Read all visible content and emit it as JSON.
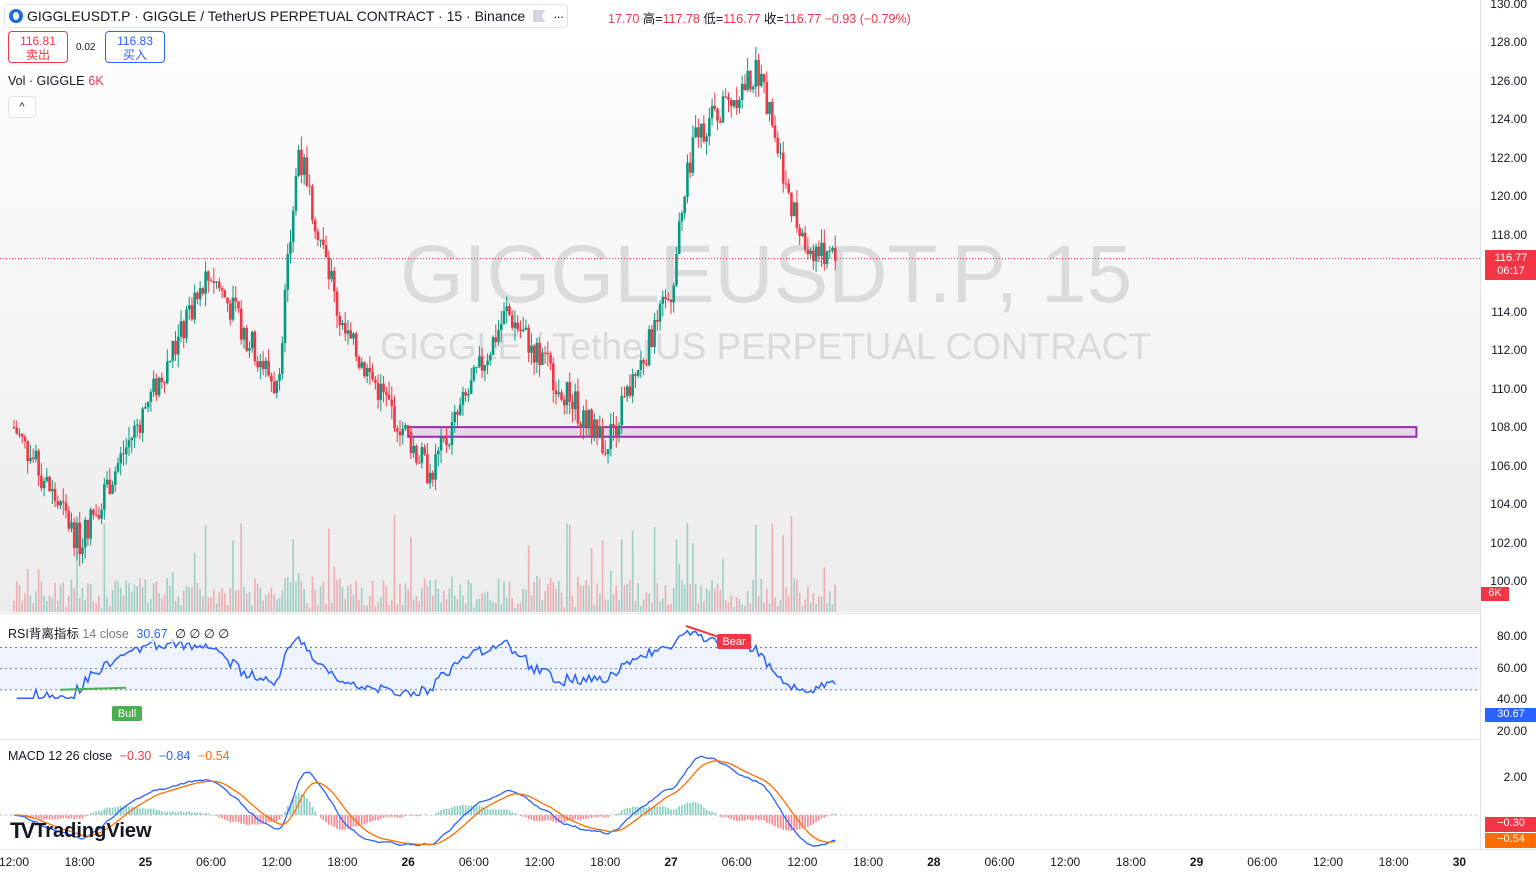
{
  "header": {
    "symbol_title": "GIGGLEUSDT.P · GIGGLE / TetherUS PERPETUAL CONTRACT · 15 · Binance",
    "more_icon": "···",
    "ohlc": {
      "open_text": "17.70",
      "high_label": "高=",
      "high": "117.78",
      "low_label": "低=",
      "low": "116.77",
      "close_label": "收=",
      "close": "116.77",
      "change": "−0.93 (−0.79%)"
    },
    "sell": {
      "price": "116.81",
      "label": "卖出"
    },
    "spread": "0.02",
    "buy": {
      "price": "116.83",
      "label": "买入"
    },
    "volume": {
      "label": "Vol · GIGGLE",
      "value": "6K"
    },
    "collapse_icon": "^"
  },
  "watermark": {
    "line1": "GIGGLEUSDT.P, 15",
    "line2": "GIGGLE / TetherUS PERPETUAL CONTRACT"
  },
  "price_axis": {
    "ticks": [
      "130.00",
      "128.00",
      "126.00",
      "124.00",
      "122.00",
      "120.00",
      "118.00",
      "114.00",
      "112.00",
      "110.00",
      "108.00",
      "106.00",
      "104.00",
      "102.00",
      "100.00"
    ],
    "current_price": "116.77",
    "countdown": "06:17",
    "volume_badge": "6K"
  },
  "rsi": {
    "legend_name": "RSI背离指标",
    "legend_params": "14 close",
    "legend_value": "30.67",
    "legend_extra": "∅ ∅ ∅ ∅",
    "ticks": [
      "80.00",
      "60.00",
      "40.00",
      "20.00"
    ],
    "value_badge": "30.67",
    "bull_label": "Bull",
    "bear_label": "Bear"
  },
  "macd": {
    "legend_name": "MACD",
    "legend_params": "12 26 close",
    "hist": "−0.30",
    "macd": "−0.84",
    "signal": "−0.54",
    "ticks": [
      "2.00"
    ],
    "hist_badge": "−0.30",
    "signal_badge": "−0.54"
  },
  "time_axis": [
    "12:00",
    "18:00",
    "25",
    "06:00",
    "12:00",
    "18:00",
    "26",
    "06:00",
    "12:00",
    "18:00",
    "27",
    "06:00",
    "12:00",
    "18:00",
    "28",
    "06:00",
    "12:00",
    "18:00",
    "29",
    "06:00",
    "12:00",
    "18:00",
    "30"
  ],
  "branding": {
    "logo_text": "TradingView"
  },
  "colors": {
    "up": "#089981",
    "down": "#f23645",
    "rect": "#9c27b0",
    "rsi": "#2962ff",
    "macd_signal": "#ff6d00"
  },
  "chart_data": {
    "type": "candlestick",
    "interval": "15",
    "key_closes": [
      {
        "time": "24 12:00",
        "price": 108.0
      },
      {
        "time": "24 18:00",
        "price": 102.0
      },
      {
        "time": "25 06:00",
        "price": 116.0
      },
      {
        "time": "25 12:00",
        "price": 110.0
      },
      {
        "time": "25 14:00",
        "price": 122.5
      },
      {
        "time": "25 18:00",
        "price": 113.0
      },
      {
        "time": "26 00:00",
        "price": 107.5
      },
      {
        "time": "26 02:00",
        "price": 105.5
      },
      {
        "time": "26 09:00",
        "price": 114.0
      },
      {
        "time": "26 18:00",
        "price": 107.0
      },
      {
        "time": "27 00:00",
        "price": 115.0
      },
      {
        "time": "27 02:00",
        "price": 123.0
      },
      {
        "time": "27 08:00",
        "price": 126.5
      },
      {
        "time": "27 12:00",
        "price": 117.5
      },
      {
        "time": "27 15:00",
        "price": 116.77
      }
    ],
    "support_zone": {
      "low": 107.5,
      "high": 108.0,
      "from": "26 00:00",
      "to": "30 00:00"
    },
    "current_price": 116.77,
    "ylim": [
      100,
      130
    ]
  }
}
